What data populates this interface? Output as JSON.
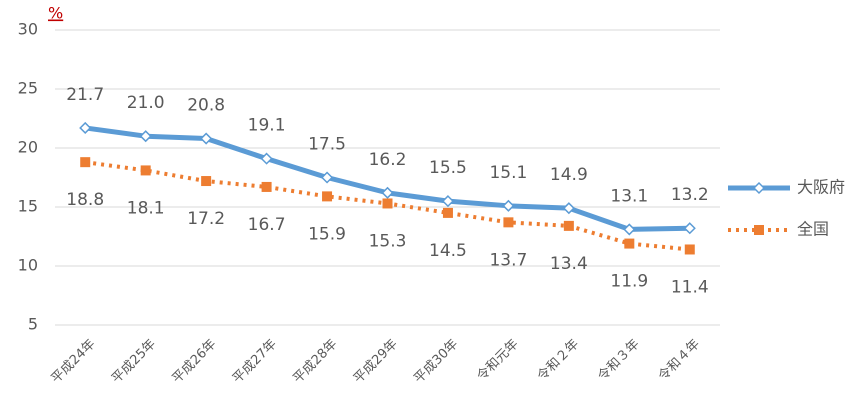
{
  "chart_data": {
    "type": "line",
    "unit": "%",
    "categories": [
      "平成24年",
      "平成25年",
      "平成26年",
      "平成27年",
      "平成28年",
      "平成29年",
      "平成30年",
      "令和元年",
      "令和２年",
      "令和３年",
      "令和４年"
    ],
    "series": [
      {
        "name": "大阪府",
        "color": "#5b9bd5",
        "marker": "diamond",
        "line": "solid",
        "values": [
          21.7,
          21.0,
          20.8,
          19.1,
          17.5,
          16.2,
          15.5,
          15.1,
          14.9,
          13.1,
          13.2
        ],
        "value_labels": [
          "21.7",
          "21.0",
          "20.8",
          "19.1",
          "17.5",
          "16.2",
          "15.5",
          "15.1",
          "14.9",
          "13.1",
          "13.2"
        ],
        "label_position": "above"
      },
      {
        "name": "全国",
        "color": "#ed7d31",
        "marker": "square",
        "line": "dotted",
        "values": [
          18.8,
          18.1,
          17.2,
          16.7,
          15.9,
          15.3,
          14.5,
          13.7,
          13.4,
          11.9,
          11.4
        ],
        "value_labels": [
          "18.8",
          "18.1",
          "17.2",
          "16.7",
          "15.9",
          "15.3",
          "14.5",
          "13.7",
          "13.4",
          "11.9",
          "11.4"
        ],
        "label_position": "below"
      }
    ],
    "ylim": [
      5,
      30
    ],
    "yticks": [
      5,
      10,
      15,
      20,
      25,
      30
    ],
    "grid": true,
    "legend": "right"
  }
}
